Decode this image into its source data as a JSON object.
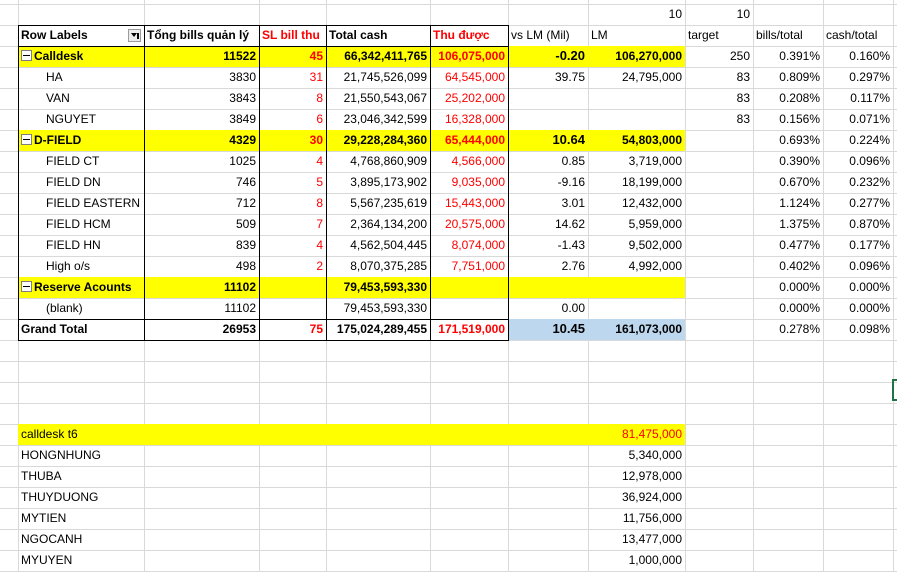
{
  "header_values": {
    "col_g": "10",
    "col_h": "10"
  },
  "columns": {
    "row_labels": "Row Labels",
    "total_bills": "Tổng bills quản lý",
    "sl_bill_thu": "SL bill thu",
    "total_cash": "Total cash",
    "thu_duoc": "Thu được",
    "vs_lm": "vs LM (Mil)",
    "lm": "LM",
    "target": "target",
    "bills_total": "bills/total",
    "cash_total": "cash/total"
  },
  "pivot_rows": [
    {
      "label": "Calldesk",
      "group": true,
      "bills": "11522",
      "sl": "45",
      "cash": "66,342,411,765",
      "thu": "106,075,000",
      "vs": "-0.20",
      "lm": "106,270,000",
      "target": "250",
      "bpt": "0.391%",
      "cpt": "0.160%"
    },
    {
      "label": "HA",
      "group": false,
      "bills": "3830",
      "sl": "31",
      "cash": "21,745,526,099",
      "thu": "64,545,000",
      "vs": "39.75",
      "lm": "24,795,000",
      "target": "83",
      "bpt": "0.809%",
      "cpt": "0.297%"
    },
    {
      "label": "VAN",
      "group": false,
      "bills": "3843",
      "sl": "8",
      "cash": "21,550,543,067",
      "thu": "25,202,000",
      "vs": "",
      "lm": "",
      "target": "83",
      "bpt": "0.208%",
      "cpt": "0.117%"
    },
    {
      "label": "NGUYET",
      "group": false,
      "bills": "3849",
      "sl": "6",
      "cash": "23,046,342,599",
      "thu": "16,328,000",
      "vs": "",
      "lm": "",
      "target": "83",
      "bpt": "0.156%",
      "cpt": "0.071%"
    },
    {
      "label": "D-FIELD",
      "group": true,
      "bills": "4329",
      "sl": "30",
      "cash": "29,228,284,360",
      "thu": "65,444,000",
      "vs": "10.64",
      "lm": "54,803,000",
      "target": "",
      "bpt": "0.693%",
      "cpt": "0.224%"
    },
    {
      "label": "FIELD CT",
      "group": false,
      "bills": "1025",
      "sl": "4",
      "cash": "4,768,860,909",
      "thu": "4,566,000",
      "vs": "0.85",
      "lm": "3,719,000",
      "target": "",
      "bpt": "0.390%",
      "cpt": "0.096%"
    },
    {
      "label": "FIELD DN",
      "group": false,
      "bills": "746",
      "sl": "5",
      "cash": "3,895,173,902",
      "thu": "9,035,000",
      "vs": "-9.16",
      "lm": "18,199,000",
      "target": "",
      "bpt": "0.670%",
      "cpt": "0.232%"
    },
    {
      "label": "FIELD EASTERN",
      "group": false,
      "bills": "712",
      "sl": "8",
      "cash": "5,567,235,619",
      "thu": "15,443,000",
      "vs": "3.01",
      "lm": "12,432,000",
      "target": "",
      "bpt": "1.124%",
      "cpt": "0.277%"
    },
    {
      "label": "FIELD HCM",
      "group": false,
      "bills": "509",
      "sl": "7",
      "cash": "2,364,134,200",
      "thu": "20,575,000",
      "vs": "14.62",
      "lm": "5,959,000",
      "target": "",
      "bpt": "1.375%",
      "cpt": "0.870%"
    },
    {
      "label": "FIELD HN",
      "group": false,
      "bills": "839",
      "sl": "4",
      "cash": "4,562,504,445",
      "thu": "8,074,000",
      "vs": "-1.43",
      "lm": "9,502,000",
      "target": "",
      "bpt": "0.477%",
      "cpt": "0.177%"
    },
    {
      "label": "High o/s",
      "group": false,
      "bills": "498",
      "sl": "2",
      "cash": "8,070,375,285",
      "thu": "7,751,000",
      "vs": "2.76",
      "lm": "4,992,000",
      "target": "",
      "bpt": "0.402%",
      "cpt": "0.096%"
    },
    {
      "label": "Reserve Acounts",
      "group": true,
      "bills": "11102",
      "sl": "",
      "cash": "79,453,593,330",
      "thu": "",
      "vs": "",
      "lm": "",
      "target": "",
      "bpt": "0.000%",
      "cpt": "0.000%"
    },
    {
      "label": "(blank)",
      "group": false,
      "bills": "11102",
      "sl": "",
      "cash": "79,453,593,330",
      "thu": "",
      "vs": "0.00",
      "lm": "",
      "target": "",
      "bpt": "0.000%",
      "cpt": "0.000%"
    }
  ],
  "grand_total": {
    "label": "Grand Total",
    "bills": "26953",
    "sl": "75",
    "cash": "175,024,289,455",
    "thu": "171,519,000",
    "vs": "10.45",
    "lm": "161,073,000",
    "bpt": "0.278%",
    "cpt": "0.098%"
  },
  "calldesk_t6": {
    "title": "calldesk t6",
    "total": "81,475,000",
    "items": [
      {
        "name": "HONGNHUNG",
        "value": "5,340,000"
      },
      {
        "name": "THUBA",
        "value": "12,978,000"
      },
      {
        "name": "THUYDUONG",
        "value": "36,924,000"
      },
      {
        "name": "MYTIEN",
        "value": "11,756,000"
      },
      {
        "name": "NGOCANH",
        "value": "13,477,000"
      },
      {
        "name": "MYUYEN",
        "value": "1,000,000"
      }
    ]
  },
  "colors": {
    "group_fill": "#ffff00",
    "total_fill": "#bdd7ee",
    "red_text": "#ff0000",
    "gridline": "#d9d9d9"
  },
  "icons": {
    "filter": "filter-dropdown-icon",
    "collapse": "collapse-minus-icon"
  }
}
